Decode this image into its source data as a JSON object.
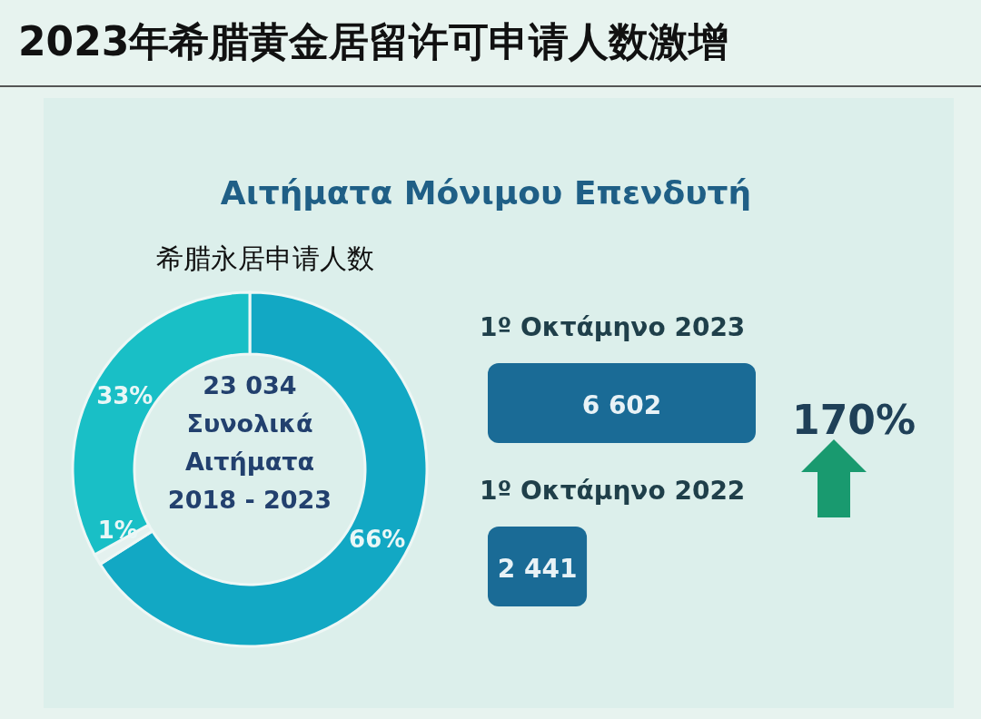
{
  "chart_data": [
    {
      "type": "donut",
      "title": "2023年希腊黄金居留许可申请人数激增",
      "subtitle": "Αιτήματα Μόνιμου Επενδυτή",
      "categories": [
        null,
        null,
        null
      ],
      "values": [
        66,
        1,
        33
      ],
      "colors": [
        "#12a8c4",
        "#e4f1ef",
        "#19bfc6"
      ],
      "value_labels": [
        "66%",
        "1%",
        "33%"
      ],
      "annotations": [
        "希腊永居申请人数",
        "23 034",
        "Συνολικά",
        "Αιτήματα",
        "2018 - 2023"
      ]
    },
    {
      "type": "bar",
      "orientation": "horizontal",
      "categories": [
        "1º Οκτάμηνο 2023",
        "1º Οκτάμηνο 2022"
      ],
      "values": [
        6602,
        2441
      ],
      "color": "#1a6b96",
      "value_labels": [
        "6 602",
        "2 441"
      ],
      "annotations": [
        "170%"
      ]
    }
  ]
}
